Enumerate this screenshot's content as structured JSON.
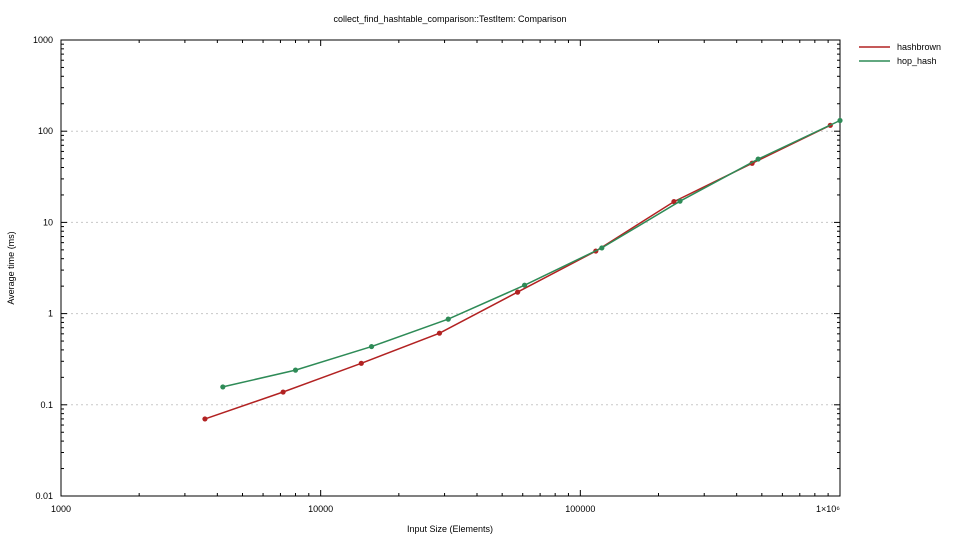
{
  "chart_data": {
    "type": "line",
    "title": "collect_find_hashtable_comparison::TestItem: Comparison",
    "xlabel": "Input Size (Elements)",
    "ylabel": "Average time (ms)",
    "xscale": "log",
    "yscale": "log",
    "xlim": [
      1000,
      1000000
    ],
    "ylim": [
      0.01,
      1000
    ],
    "x_tick_labels": [
      "1000",
      "10000",
      "100000",
      "1×10⁶"
    ],
    "y_tick_labels": [
      "0.01",
      "0.1",
      "1",
      "10",
      "100",
      "1000"
    ],
    "grid": "horizontal dotted",
    "legend_position": "top-right outside",
    "series": [
      {
        "name": "hashbrown",
        "color": "#b22222",
        "points": [
          [
            3584,
            0.07
          ],
          [
            7168,
            0.138
          ],
          [
            14336,
            0.285
          ],
          [
            28672,
            0.61
          ],
          [
            57344,
            1.72
          ],
          [
            114688,
            4.85
          ],
          [
            229376,
            16.9
          ],
          [
            458752,
            44.5
          ],
          [
            917504,
            116
          ]
        ]
      },
      {
        "name": "hop_hash",
        "color": "#2e8b57",
        "points": [
          [
            4200,
            0.157
          ],
          [
            8000,
            0.24
          ],
          [
            15700,
            0.435
          ],
          [
            31000,
            0.87
          ],
          [
            61000,
            2.05
          ],
          [
            121000,
            5.25
          ],
          [
            242000,
            17.1
          ],
          [
            484000,
            49.5
          ],
          [
            1000000,
            131
          ]
        ]
      }
    ]
  }
}
